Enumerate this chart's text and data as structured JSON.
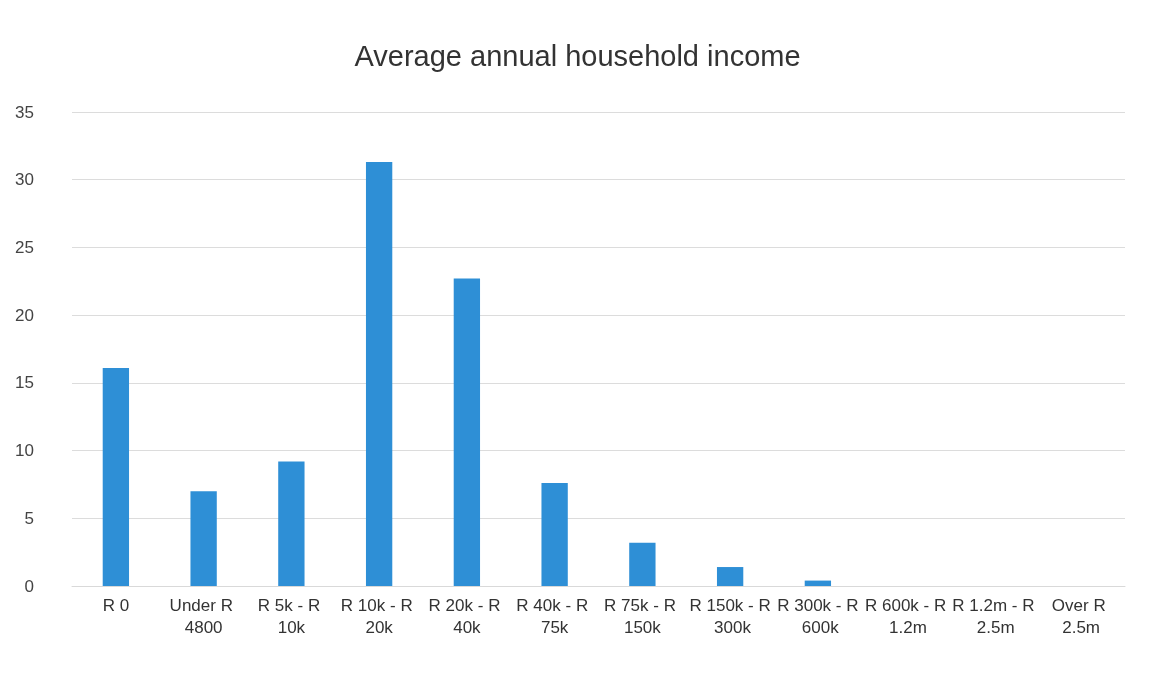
{
  "chart_data": {
    "type": "bar",
    "title": "Average annual household income",
    "categories": [
      "R 0",
      "Under R 4800",
      "R 5k - R 10k",
      "R 10k - R 20k",
      "R 20k - R 40k",
      "R 40k - R 75k",
      "R 75k - R 150k",
      "R 150k - R 300k",
      "R 300k - R 600k",
      "R 600k - R 1.2m",
      "R 1.2m - R 2.5m",
      "Over R 2.5m"
    ],
    "values": [
      16.1,
      7.0,
      9.2,
      31.3,
      22.7,
      7.6,
      3.2,
      1.4,
      0.4,
      0,
      0,
      0
    ],
    "color": "#2e8fd6",
    "ylim": [
      0,
      35
    ],
    "yticks": [
      0,
      5,
      10,
      15,
      20,
      25,
      30,
      35
    ],
    "grid": "y"
  }
}
